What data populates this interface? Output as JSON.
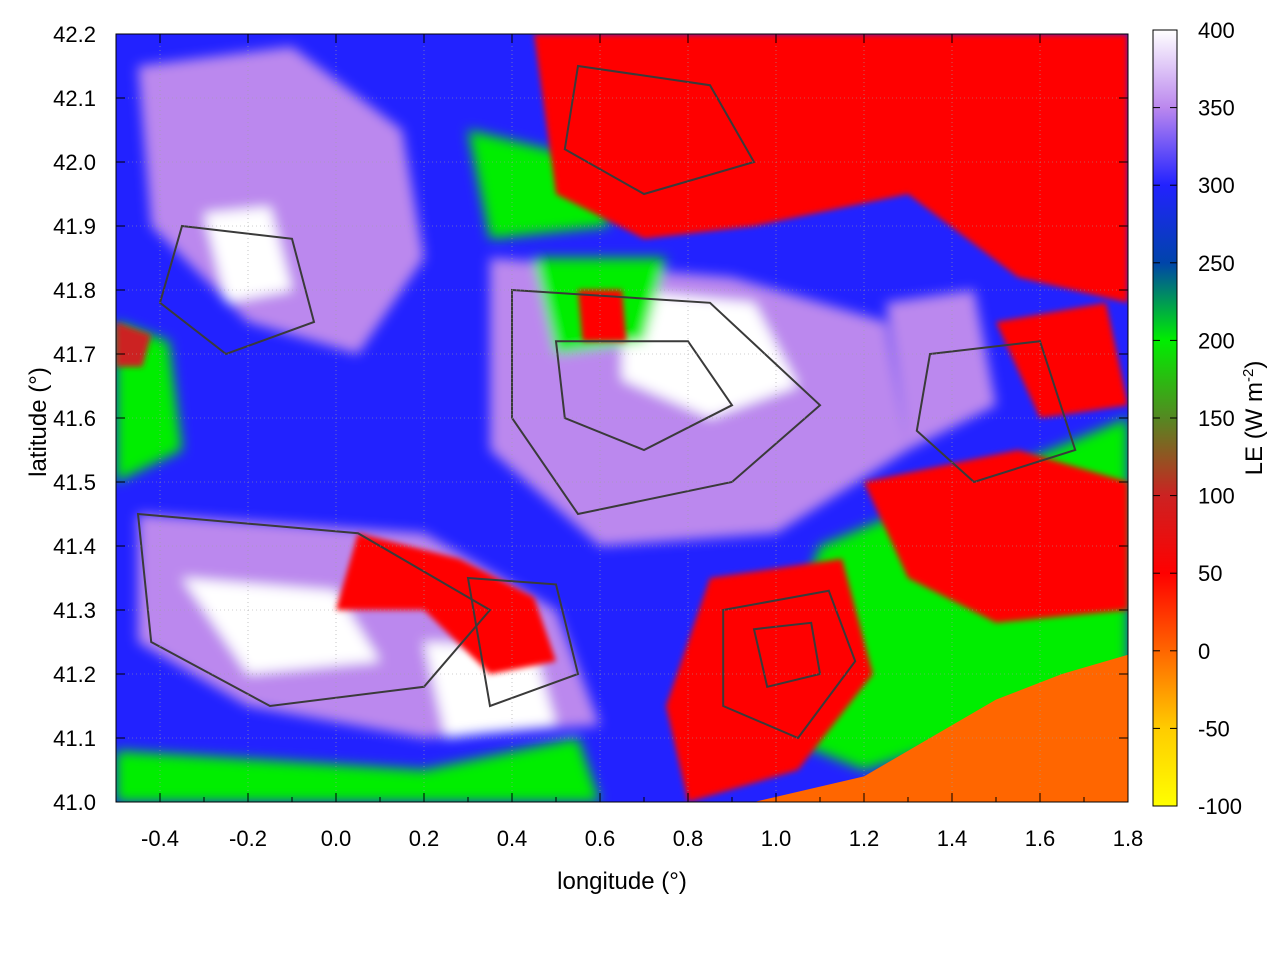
{
  "chart_data": {
    "type": "heatmap",
    "title": "",
    "xlabel": "longitude (°)",
    "ylabel": "latitude (°)",
    "colorbar_label_base": "LE (W m",
    "colorbar_label_sup": "-2",
    "colorbar_label_close": ")",
    "xlim": [
      -0.5,
      1.8
    ],
    "ylim": [
      41.0,
      42.2
    ],
    "zlim": [
      -100,
      400
    ],
    "x_ticks": [
      -0.4,
      -0.2,
      0.0,
      0.2,
      0.4,
      0.6,
      0.8,
      1.0,
      1.2,
      1.4,
      1.6,
      1.8
    ],
    "x_tick_labels": [
      "-0.4",
      "-0.2",
      "0.0",
      "0.2",
      "0.4",
      "0.6",
      "0.8",
      "1.0",
      "1.2",
      "1.4",
      "1.6",
      "1.8"
    ],
    "y_ticks": [
      41.0,
      41.1,
      41.2,
      41.3,
      41.4,
      41.5,
      41.6,
      41.7,
      41.8,
      41.9,
      42.0,
      42.1,
      42.2
    ],
    "y_tick_labels": [
      "41.0",
      "41.1",
      "41.2",
      "41.3",
      "41.4",
      "41.5",
      "41.6",
      "41.7",
      "41.8",
      "41.9",
      "42.0",
      "42.1",
      "42.2"
    ],
    "colorbar_ticks": [
      -100,
      -50,
      0,
      50,
      100,
      150,
      200,
      250,
      300,
      350,
      400
    ],
    "colorbar_tick_labels": [
      "-100",
      "-50",
      "0",
      "50",
      "100",
      "150",
      "200",
      "250",
      "300",
      "350",
      "400"
    ],
    "colormap": [
      {
        "value": -100,
        "color": "#ffff00"
      },
      {
        "value": -50,
        "color": "#ffcc00"
      },
      {
        "value": 0,
        "color": "#ff6600"
      },
      {
        "value": 50,
        "color": "#ff0000"
      },
      {
        "value": 100,
        "color": "#cc2222"
      },
      {
        "value": 150,
        "color": "#558822"
      },
      {
        "value": 200,
        "color": "#00ee00"
      },
      {
        "value": 250,
        "color": "#0044aa"
      },
      {
        "value": 300,
        "color": "#2222ff"
      },
      {
        "value": 350,
        "color": "#bb88ee"
      },
      {
        "value": 400,
        "color": "#ffffff"
      }
    ],
    "contours": "dark grey topography isolines overlaid",
    "grid": true
  }
}
